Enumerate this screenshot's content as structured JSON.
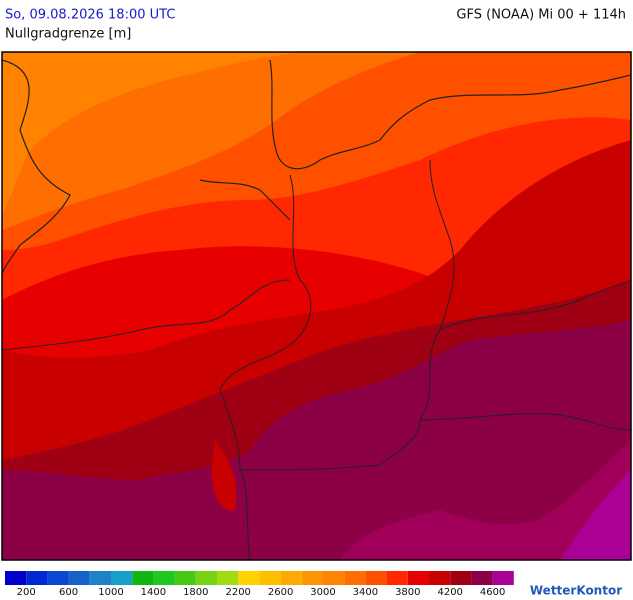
{
  "header": {
    "title": "So, 09.08.2026 18:00 UTC",
    "model": "GFS (NOAA) Mi 00 + 114h",
    "subtitle": "Nullgradgrenze [m]"
  },
  "legend": {
    "colors": [
      "#0000c8",
      "#0028d2",
      "#0a46d2",
      "#1464c8",
      "#1e82c8",
      "#14a0c8",
      "#14b414",
      "#1ec81e",
      "#46c814",
      "#78d214",
      "#a0dc14",
      "#ffd200",
      "#ffbe00",
      "#ffaa00",
      "#ff9600",
      "#ff8200",
      "#ff6e00",
      "#ff5000",
      "#ff2800",
      "#e60000",
      "#c80000",
      "#a00014",
      "#8c0046",
      "#aa0096"
    ],
    "labels": [
      200,
      600,
      1000,
      1400,
      1800,
      2200,
      2600,
      3000,
      3400,
      3800,
      4200,
      4600
    ]
  },
  "logo": "WetterKontor"
}
